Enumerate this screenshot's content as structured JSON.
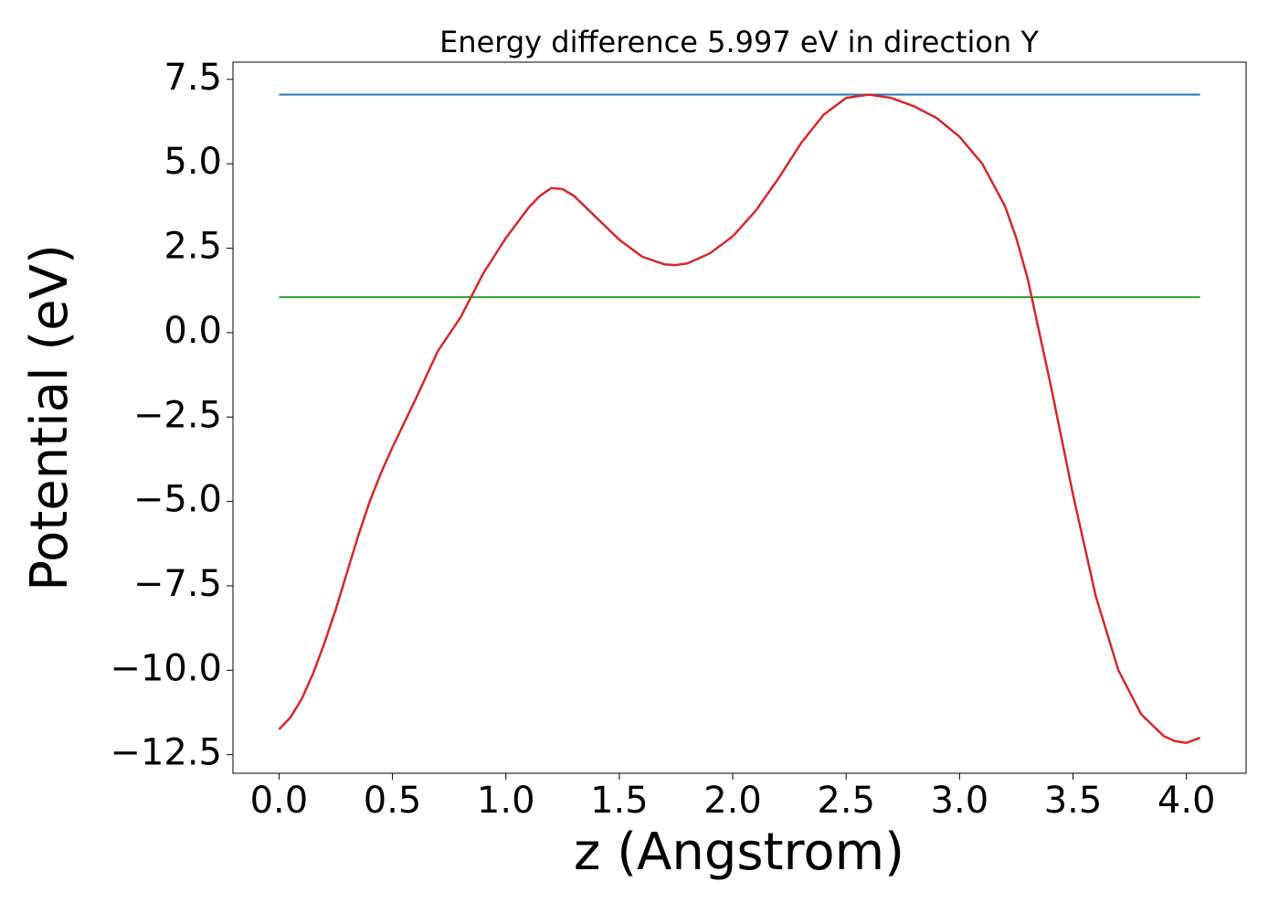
{
  "chart_data": {
    "type": "line",
    "title": "Energy difference 5.997 eV in direction Y",
    "xlabel": "z (Angstrom)",
    "ylabel": "Potential (eV)",
    "xlim": [
      -0.203,
      4.263
    ],
    "ylim": [
      -13.05,
      8.01
    ],
    "xticks": [
      {
        "value": 0,
        "label": "0.0"
      },
      {
        "value": 0.5,
        "label": "0.5"
      },
      {
        "value": 1,
        "label": "1.0"
      },
      {
        "value": 1.5,
        "label": "1.5"
      },
      {
        "value": 2,
        "label": "2.0"
      },
      {
        "value": 2.5,
        "label": "2.5"
      },
      {
        "value": 3,
        "label": "3.0"
      },
      {
        "value": 3.5,
        "label": "3.5"
      },
      {
        "value": 4,
        "label": "4.0"
      }
    ],
    "yticks": [
      {
        "value": -12.5,
        "label": "−12.5"
      },
      {
        "value": -10,
        "label": "−10.0"
      },
      {
        "value": -7.5,
        "label": "−7.5"
      },
      {
        "value": -5,
        "label": "−5.0"
      },
      {
        "value": -2.5,
        "label": "−2.5"
      },
      {
        "value": 0,
        "label": "0.0"
      },
      {
        "value": 2.5,
        "label": "2.5"
      },
      {
        "value": 5,
        "label": "5.0"
      },
      {
        "value": 7.5,
        "label": "7.5"
      }
    ],
    "grid": false,
    "series": [
      {
        "color": "#1f77b4",
        "x": [
          0,
          4.06
        ],
        "values": [
          7.05,
          7.05
        ]
      },
      {
        "color": "#2ca02c",
        "x": [
          0,
          4.06
        ],
        "values": [
          1.05,
          1.05
        ]
      },
      {
        "color": "#d62728",
        "x": [
          0,
          0.05,
          0.1,
          0.15,
          0.2,
          0.25,
          0.3,
          0.35,
          0.4,
          0.45,
          0.5,
          0.6,
          0.7,
          0.8,
          0.9,
          1.0,
          1.1,
          1.15,
          1.2,
          1.25,
          1.3,
          1.4,
          1.5,
          1.6,
          1.7,
          1.75,
          1.8,
          1.9,
          2.0,
          2.1,
          2.2,
          2.3,
          2.4,
          2.5,
          2.6,
          2.7,
          2.8,
          2.9,
          3.0,
          3.1,
          3.2,
          3.25,
          3.3,
          3.35,
          3.4,
          3.5,
          3.6,
          3.7,
          3.8,
          3.9,
          3.95,
          4.0,
          4.06
        ],
        "values": [
          -11.75,
          -11.4,
          -10.85,
          -10.1,
          -9.2,
          -8.2,
          -7.1,
          -6.0,
          -5.0,
          -4.15,
          -3.4,
          -2.0,
          -0.55,
          0.45,
          1.75,
          2.8,
          3.7,
          4.05,
          4.28,
          4.25,
          4.05,
          3.4,
          2.75,
          2.25,
          2.02,
          2.0,
          2.05,
          2.35,
          2.85,
          3.6,
          4.55,
          5.6,
          6.45,
          6.95,
          7.05,
          6.95,
          6.7,
          6.35,
          5.8,
          5.0,
          3.75,
          2.8,
          1.6,
          0.05,
          -1.5,
          -4.8,
          -7.8,
          -10.0,
          -11.3,
          -11.95,
          -12.1,
          -12.15,
          -12.0
        ]
      }
    ]
  }
}
